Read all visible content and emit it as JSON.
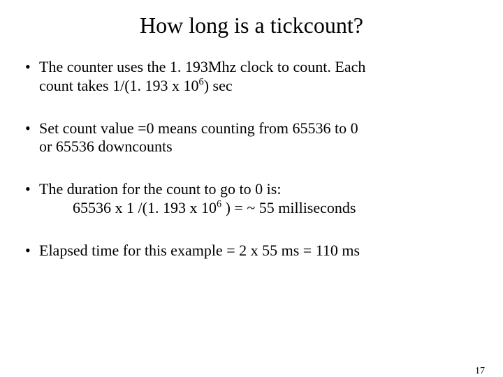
{
  "title": "How long is a tickcount?",
  "bullets": {
    "b1a": "The counter uses the 1. 193Mhz clock to count. Each",
    "b1b": "count takes 1/(1. 193 x 10",
    "b1b_sup": "6",
    "b1c": ") sec",
    "b2a": " Set count value =0 means counting from 65536 to 0",
    "b2b": "or 65536 downcounts",
    "b3a": " The duration for the count to go to 0 is:",
    "b3b_pre": "65536 x 1 /(1. 193 x 10",
    "b3b_sup": "6",
    "b3b_post": " )  = ~ 55 milliseconds",
    "b4": "Elapsed time for this example = 2 x 55 ms = 110 ms"
  },
  "pageNumber": "17",
  "style": {
    "background": "#ffffff",
    "text_color": "#000000",
    "title_fontsize": 32,
    "body_fontsize": 22,
    "pagenum_fontsize": 14,
    "font_family": "Times New Roman"
  }
}
